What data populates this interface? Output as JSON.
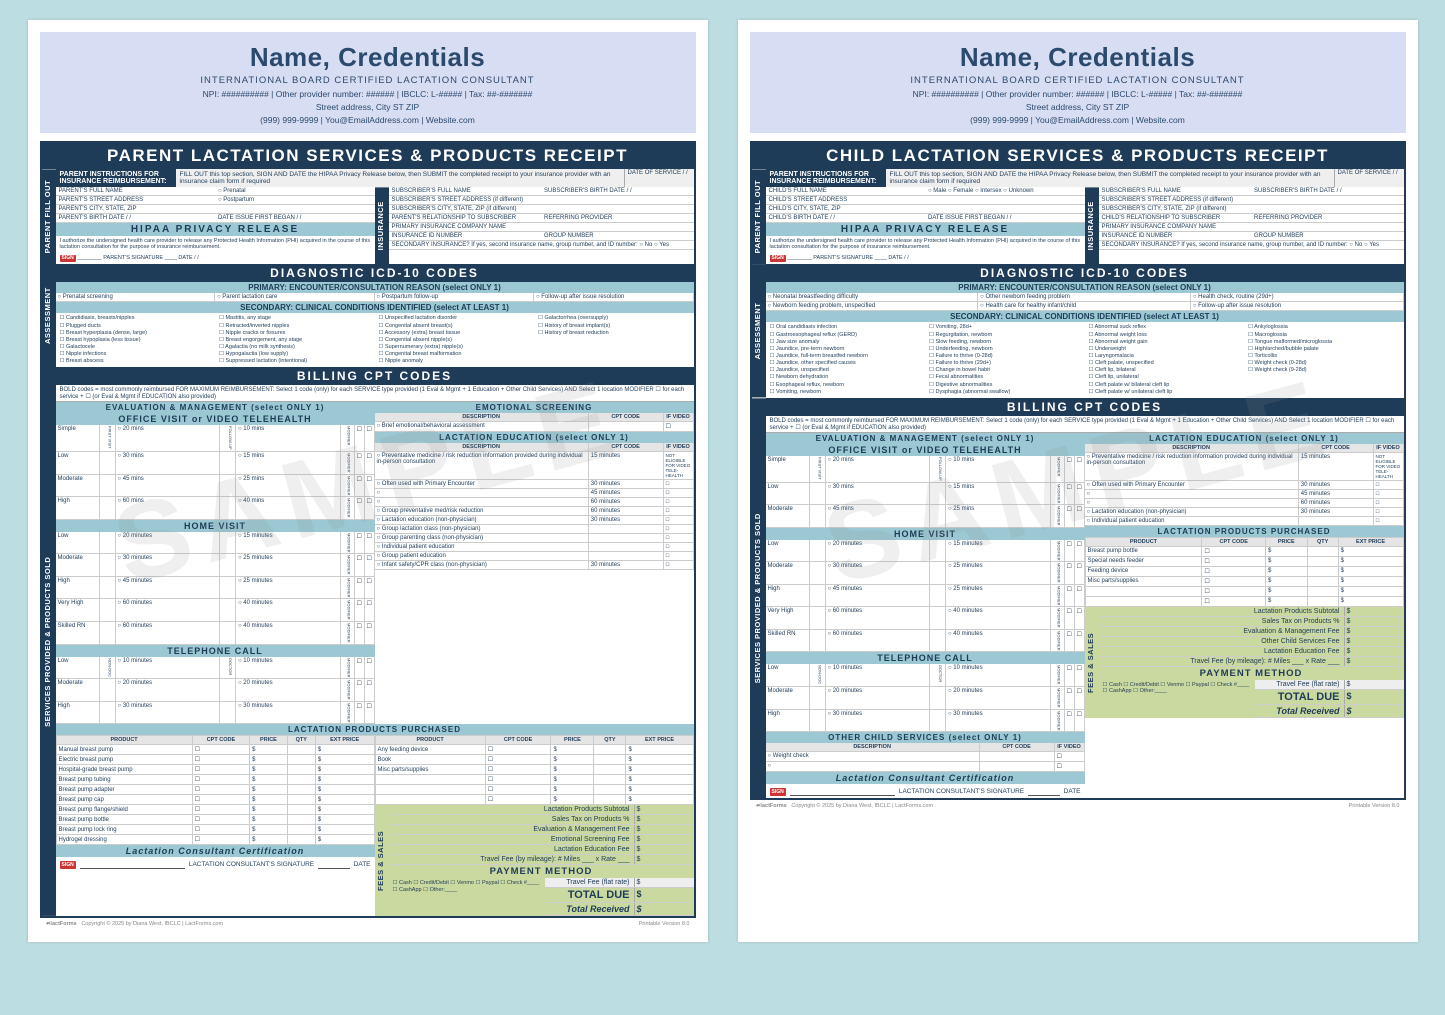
{
  "masthead": {
    "name": "Name, Credentials",
    "subtitle": "INTERNATIONAL BOARD CERTIFIED LACTATION CONSULTANT",
    "line1": "NPI: ########## | Other provider number: ###### | IBCLC: L-##### | Tax: ##-#######",
    "line2": "Street address, City ST ZIP",
    "line3": "(999) 999-9999 | You@EmailAddress.com | Website.com"
  },
  "titles": {
    "parent": "PARENT LACTATION SERVICES & PRODUCTS RECEIPT",
    "child": "CHILD LACTATION SERVICES & PRODUCTS RECEIPT"
  },
  "sidelabels": {
    "assessment": "ASSESSMENT",
    "parentfill": "PARENT FILL OUT",
    "services": "SERVICES PROVIDED & PRODUCTS SOLD",
    "insurance": "INSURANCE",
    "fees": "FEES & SALES"
  },
  "instr": {
    "label": "PARENT INSTRUCTIONS FOR INSURANCE REIMBURSEMENT:",
    "text": "FILL OUT this top section, SIGN AND DATE the HIPAA Privacy Release below, then SUBMIT the completed receipt to your insurance provider with an insurance claim form if required",
    "dos": "DATE OF SERVICE  /  /"
  },
  "parent_fields": {
    "leftcol": [
      "PARENT'S FULL NAME",
      "PARENT'S STREET ADDRESS",
      "PARENT'S CITY, STATE, ZIP",
      "PARENT'S BIRTH DATE        /    /"
    ],
    "dateissue": "DATE ISSUE FIRST BEGAN    /    /",
    "gender": [
      "Prenatal",
      "Postpartum"
    ],
    "rightcol": [
      "SUBSCRIBER'S FULL NAME",
      "SUBSCRIBER'S STREET ADDRESS (if different)",
      "SUBSCRIBER'S CITY, STATE, ZIP (if different)",
      "PARENT'S RELATIONSHIP TO SUBSCRIBER",
      "PRIMARY INSURANCE COMPANY NAME",
      "INSURANCE ID NUMBER"
    ],
    "subbdate": "SUBSCRIBER'S BIRTH DATE    /    /",
    "refprov": "REFERRING PROVIDER",
    "group": "GROUP NUMBER",
    "second": "SECONDARY INSURANCE?  If yes, second insurance name, group number, and ID number:   ○ No  ○ Yes"
  },
  "child_fields": {
    "leftcol": [
      "CHILD'S FULL NAME",
      "CHILD'S STREET ADDRESS",
      "CHILD'S CITY, STATE, ZIP",
      "CHILD'S BIRTH DATE        /    /"
    ],
    "gender": [
      "Male",
      "Female",
      "Intersex",
      "Unknown"
    ],
    "rightcol": [
      "SUBSCRIBER'S FULL NAME",
      "SUBSCRIBER'S STREET ADDRESS (if different)",
      "SUBSCRIBER'S CITY, STATE, ZIP (if different)",
      "CHILD'S RELATIONSHIP TO SUBSCRIBER",
      "PRIMARY INSURANCE COMPANY NAME",
      "INSURANCE ID NUMBER"
    ]
  },
  "hipaa": {
    "title": "HIPAA PRIVACY RELEASE",
    "text": "I authorize the undersigned health care provider to release any Protected Health Information (PHI) acquired in the course of this lactation consultation for the purpose of insurance reimbursement.",
    "sign": "PARENT'S SIGNATURE",
    "date": "DATE    /    /"
  },
  "bands": {
    "icd": "DIAGNOSTIC ICD-10 CODES",
    "cpt": "BILLING CPT CODES",
    "primary": "PRIMARY:  ENCOUNTER/CONSULTATION REASON  (select ONLY 1)",
    "secondary": "SECONDARY:  CLINICAL CONDITIONS IDENTIFIED  (select AT LEAST 1)",
    "eval": "EVALUATION & MANAGEMENT  (select ONLY 1)",
    "emot": "EMOTIONAL SCREENING",
    "lacted": "LACTATION EDUCATION  (select ONLY 1)",
    "lactprod": "LACTATION PRODUCTS PURCHASED",
    "othchild": "OTHER CHILD SERVICES  (select ONLY 1)",
    "cert": "Lactation Consultant Certification",
    "pay": "PAYMENT METHOD",
    "office": "OFFICE VISIT or VIDEO TELEHEALTH",
    "home": "HOME VISIT",
    "phone": "TELEPHONE CALL"
  },
  "primary_parent": [
    "Prenatal screening",
    "Parent lactation care",
    "Postpartum follow-up",
    "Follow-up after issue resolution"
  ],
  "primary_child": [
    "Neonatal breastfeeding difficulty",
    "Other newborn feeding problem",
    "Health check, routine (29d+)",
    "Newborn feeding problem, unspecified",
    "Health care for healthy infant/child",
    "Follow-up after issue resolution"
  ],
  "secondary_parent": [
    [
      "Candidiasis, breasts/nipples",
      "Plugged ducts",
      "Breast hyperplasia (dense, large)",
      "Breast hypoplasia (less tissue)",
      "Galactocele",
      "Nipple infections",
      "Breast abscess"
    ],
    [
      "Mastitis, any stage",
      "Retracted/inverted nipples",
      "Nipple cracks or fissures",
      "Breast engorgement, any stage",
      "Agalactia (no milk synthesis)",
      "Hypogalactia (low supply)",
      "Suppressed lactation (intentional)"
    ],
    [
      "Unspecified lactation disorder",
      "Congenital absent breast(s)",
      "Accessory (extra) breast tissue",
      "Congenital absent nipple(s)",
      "Supernumerary (extra) nipple(s)",
      "Congenital breast malformation",
      "Nipple anomaly"
    ],
    [
      "Galactorrhea (oversupply)",
      "History of breast implant(s)",
      "History of breast reduction"
    ]
  ],
  "secondary_child": [
    [
      "Oral candidiasis infection",
      "Gastroesophageal reflux (GERD)",
      "Jaw size anomaly",
      "Jaundice, pre-term newborn",
      "Jaundice, full-term breastfed newborn",
      "Jaundice, other specified causes",
      "Jaundice, unspecified",
      "Newborn dehydration",
      "Esophageal reflux, newborn",
      "Vomiting, newborn"
    ],
    [
      "Vomiting, 28d+",
      "Regurgitation, newborn",
      "Slow feeding, newborn",
      "Underfeeding, newborn",
      "Failure to thrive (0-28d)",
      "Failure to thrive (29d+)",
      "Change in bowel habit",
      "Fecal abnormalities",
      "Digestive abnormalities",
      "Dysphagia (abnormal swallow)"
    ],
    [
      "Abnormal suck reflex",
      "Abnormal weight loss",
      "Abnormal weight gain",
      "Underweight",
      "Laryngomalacia",
      "Cleft palate, unspecified",
      "Cleft lip, bilateral",
      "Cleft lip, unilateral",
      "Cleft palate w/ bilateral cleft lip",
      "Cleft palate w/ unilateral cleft lip"
    ],
    [
      "Ankyloglossia",
      "Macroglossia",
      "Tongue malformed/microglossia",
      "High/arched/bubble palate",
      "Torticollis",
      "Weight check (0-28d)",
      "Weight check (9-28d)"
    ]
  ],
  "boldnote": "BOLD codes = most commonly reimbursed    FOR MAXIMUM REIMBURSEMENT:  Select 1 code (only) for each SERVICE type provided (1 Eval & Mgmt + 1 Education + Other Child Services) AND Select 1 location MODIFIER ☐ for each service + ☐ (or Eval & Mgmt if EDUCATION also provided)",
  "eval_hdr": [
    "COMPLEXITY",
    "",
    "",
    "",
    "LOCATION + EDUCATION",
    "DESCRIPTION",
    "CPT CODE",
    "IF VIDEO"
  ],
  "eval_office": [
    [
      "Simple",
      "FIRST VISIT",
      "20 mins",
      "FOLLOW-UP",
      "10 mins"
    ],
    [
      "Low",
      "",
      "30 mins",
      "",
      "15 mins"
    ],
    [
      "Moderate",
      "",
      "45 mins",
      "",
      "25 mins"
    ],
    [
      "High",
      "",
      "60 mins",
      "",
      "40 mins"
    ]
  ],
  "eval_home": [
    [
      "Low",
      "",
      "20 minutes",
      "",
      "15 minutes"
    ],
    [
      "Moderate",
      "",
      "30 minutes",
      "",
      "25 minutes"
    ],
    [
      "High",
      "",
      "45 minutes",
      "",
      "25 minutes"
    ],
    [
      "Very High",
      "",
      "60 minutes",
      "",
      "40 minutes"
    ],
    [
      "Skilled RN",
      "",
      "60 minutes",
      "",
      "40 minutes"
    ]
  ],
  "eval_phone": [
    [
      "Low",
      "NON-DOC",
      "10 minutes",
      "DOCTOR",
      "10 minutes"
    ],
    [
      "Moderate",
      "",
      "20 minutes",
      "",
      "20 minutes"
    ],
    [
      "High",
      "",
      "30 minutes",
      "",
      "30 minutes"
    ]
  ],
  "emot_desc": "Brief emotional/behavioral assessment",
  "lacted_items_parent": [
    [
      "Preventative medicine / risk reduction information provided during individual in-person consultation",
      "15 minutes",
      "NOT ELIGIBLE FOR VIDEO TELE-HEALTH"
    ],
    [
      "Often used with Primary Encounter",
      "30 minutes",
      ""
    ],
    [
      "",
      "45 minutes",
      ""
    ],
    [
      "",
      "60 minutes",
      ""
    ],
    [
      "Group preventative med/risk reduction",
      "60 minutes",
      ""
    ],
    [
      "Lactation education (non-physician)",
      "30 minutes",
      ""
    ],
    [
      "Group lactation class (non-physician)",
      "",
      ""
    ],
    [
      "Group parenting class (non-physician)",
      "",
      ""
    ],
    [
      "Individual patient education",
      "",
      ""
    ],
    [
      "Group patient education",
      "",
      ""
    ],
    [
      "Infant safety/CPR class (non-physician)",
      "30 minutes",
      ""
    ]
  ],
  "lacted_items_child": [
    [
      "Preventative medicine / risk reduction information provided during individual in-person consultation",
      "15 minutes",
      "NOT ELIGIBLE FOR VIDEO TELE-HEALTH"
    ],
    [
      "Often used with Primary Encounter",
      "30 minutes",
      ""
    ],
    [
      "",
      "45 minutes",
      ""
    ],
    [
      "",
      "60 minutes",
      ""
    ],
    [
      "Lactation education (non-physician)",
      "30 minutes",
      ""
    ],
    [
      "Individual patient education",
      "",
      ""
    ]
  ],
  "products_parent_left": [
    "Manual breast pump",
    "Electric breast pump",
    "Hospital-grade breast pump",
    "Breast pump tubing",
    "Breast pump adapter",
    "Breast pump cap",
    "Breast pump flange/shield",
    "Breast pump bottle",
    "Breast pump lock ring",
    "Hydrogel dressing"
  ],
  "products_parent_right": [
    "Any feeding device",
    "Book",
    "Misc parts/supplies"
  ],
  "products_child": [
    "Breast pump bottle",
    "Special needs feeder",
    "Feeding device",
    "Misc parts/supplies"
  ],
  "prod_hdr": [
    "PRODUCT",
    "CPT CODE",
    "PRICE",
    "QTY",
    "EXT PRICE"
  ],
  "fees": {
    "subtotal": "Lactation Products Subtotal",
    "tax": "Sales Tax on Products        %",
    "evalfee": "Evaluation & Management Fee",
    "emotfee": "Emotional Screening Fee",
    "edfee": "Lactation Education Fee",
    "childfee": "Other Child Services Fee",
    "travmile": "Travel Fee (by mileage): # Miles ___ x Rate ___",
    "travflat": "Travel Fee (flat rate)",
    "totaldue": "TOTAL DUE",
    "totalrec": "Total Received"
  },
  "pay": [
    "Cash",
    "Credit/Debit",
    "Venmo",
    "Paypal",
    "Check #____",
    "CashApp",
    "Other:____"
  ],
  "sign": "LACTATION CONSULTANT'S SIGNATURE",
  "othchild": "Weight check",
  "foot": {
    "c": "Copyright © 2025 by Diana West, IBCLC | LactForms.com",
    "v": "Printable Version 8.0",
    "logo": "☙lactForms"
  },
  "colors": {
    "navy": "#1e3b58",
    "teal": "#9bc8d2",
    "green": "#c9d9a0",
    "lav": "#d7ddf2",
    "bg": "#bcdde1"
  }
}
